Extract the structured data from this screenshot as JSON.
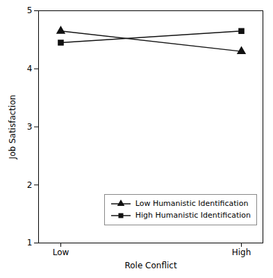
{
  "chart_data": {
    "type": "line",
    "categories": [
      "Low",
      "High"
    ],
    "x_label": "Role Conflict",
    "y_label": "Job Satisfaction",
    "series": [
      {
        "name": "Low Humanistic Identification",
        "color": "#111111",
        "marker": "triangle",
        "values": [
          4.65,
          4.3
        ]
      },
      {
        "name": "High Humanistic Identification",
        "color": "#111111",
        "marker": "square",
        "values": [
          4.45,
          4.65
        ]
      }
    ],
    "ylim": [
      1,
      5
    ],
    "yticks": [
      1,
      2,
      3,
      4,
      5
    ],
    "grid": false,
    "legend": "lower right"
  }
}
